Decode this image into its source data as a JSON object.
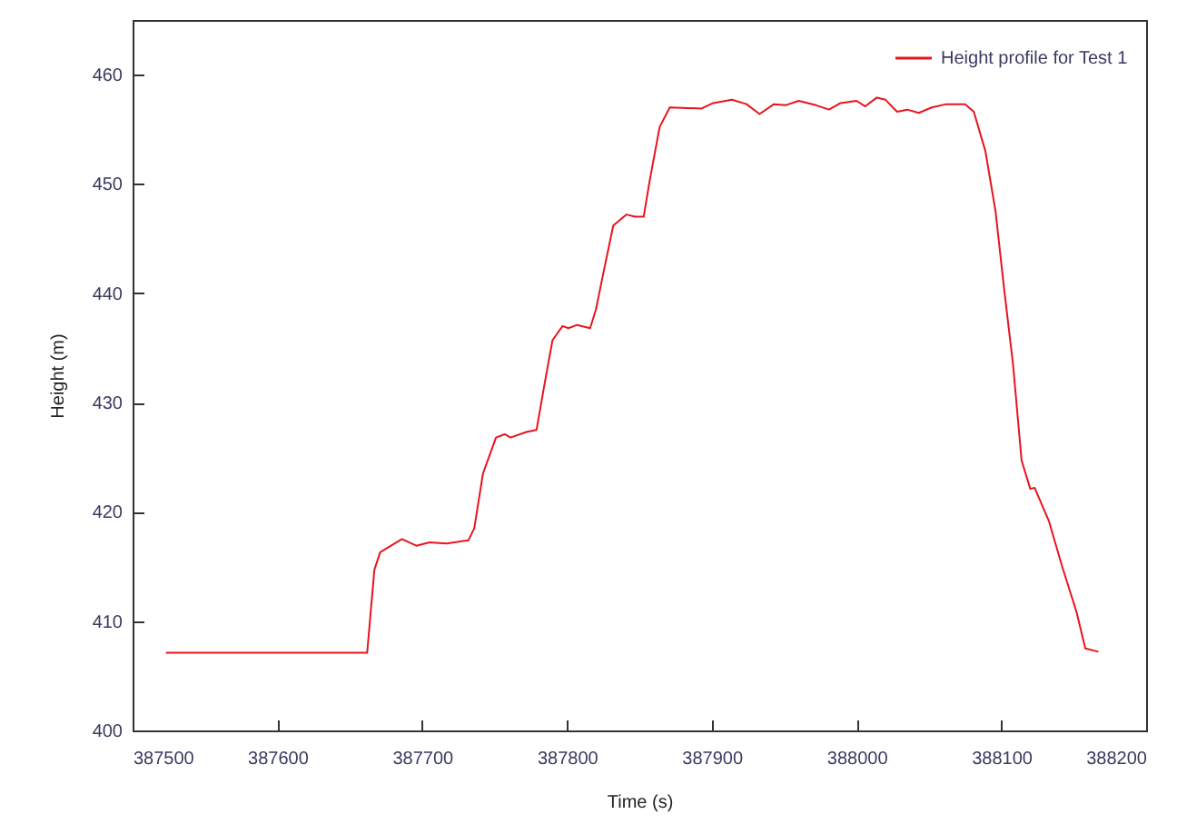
{
  "chart_data": {
    "type": "line",
    "xlabel": "Time (s)",
    "ylabel": "Height (m)",
    "xlim": [
      387500,
      388200
    ],
    "ylim": [
      400,
      465
    ],
    "xticks": [
      387500,
      387600,
      387700,
      387800,
      387900,
      388000,
      388100,
      388200
    ],
    "yticks": [
      400,
      410,
      420,
      430,
      440,
      450,
      460
    ],
    "grid": false,
    "legend": "top right",
    "marker": "none",
    "line_style": "solid",
    "series": [
      {
        "name": "Height profile for Test 1",
        "color": "#e8141e",
        "x": [
          387523,
          387662,
          387667,
          387671,
          387686,
          387696,
          387705,
          387717,
          387732,
          387736,
          387742,
          387751,
          387757,
          387761,
          387772,
          387779,
          387784,
          387790,
          387797,
          387801,
          387807,
          387816,
          387820,
          387826,
          387832,
          387841,
          387847,
          387853,
          387857,
          387864,
          387871,
          387893,
          387901,
          387914,
          387924,
          387933,
          387943,
          387951,
          387960,
          387972,
          387981,
          387989,
          388000,
          388006,
          388014,
          388020,
          388028,
          388035,
          388043,
          388052,
          388062,
          388075,
          388081,
          388089,
          388096,
          388102,
          388108,
          388114,
          388120,
          388123,
          388133,
          388142,
          388152,
          388158,
          388167
        ],
        "values": [
          407.1,
          407.1,
          414.7,
          416.3,
          417.5,
          416.9,
          417.2,
          417.1,
          417.4,
          418.5,
          423.5,
          426.8,
          427.1,
          426.8,
          427.3,
          427.5,
          431.3,
          435.7,
          437.0,
          436.8,
          437.1,
          436.8,
          438.5,
          442.4,
          446.2,
          447.2,
          447.0,
          447.0,
          450.2,
          455.2,
          457.0,
          456.9,
          457.4,
          457.7,
          457.3,
          456.4,
          457.3,
          457.2,
          457.6,
          457.2,
          456.8,
          457.4,
          457.6,
          457.1,
          457.9,
          457.7,
          456.6,
          456.8,
          456.5,
          457.0,
          457.3,
          457.3,
          456.6,
          453.0,
          447.5,
          440.3,
          433.6,
          424.7,
          422.1,
          422.2,
          419.1,
          415.0,
          410.8,
          407.5,
          407.2
        ]
      }
    ]
  }
}
